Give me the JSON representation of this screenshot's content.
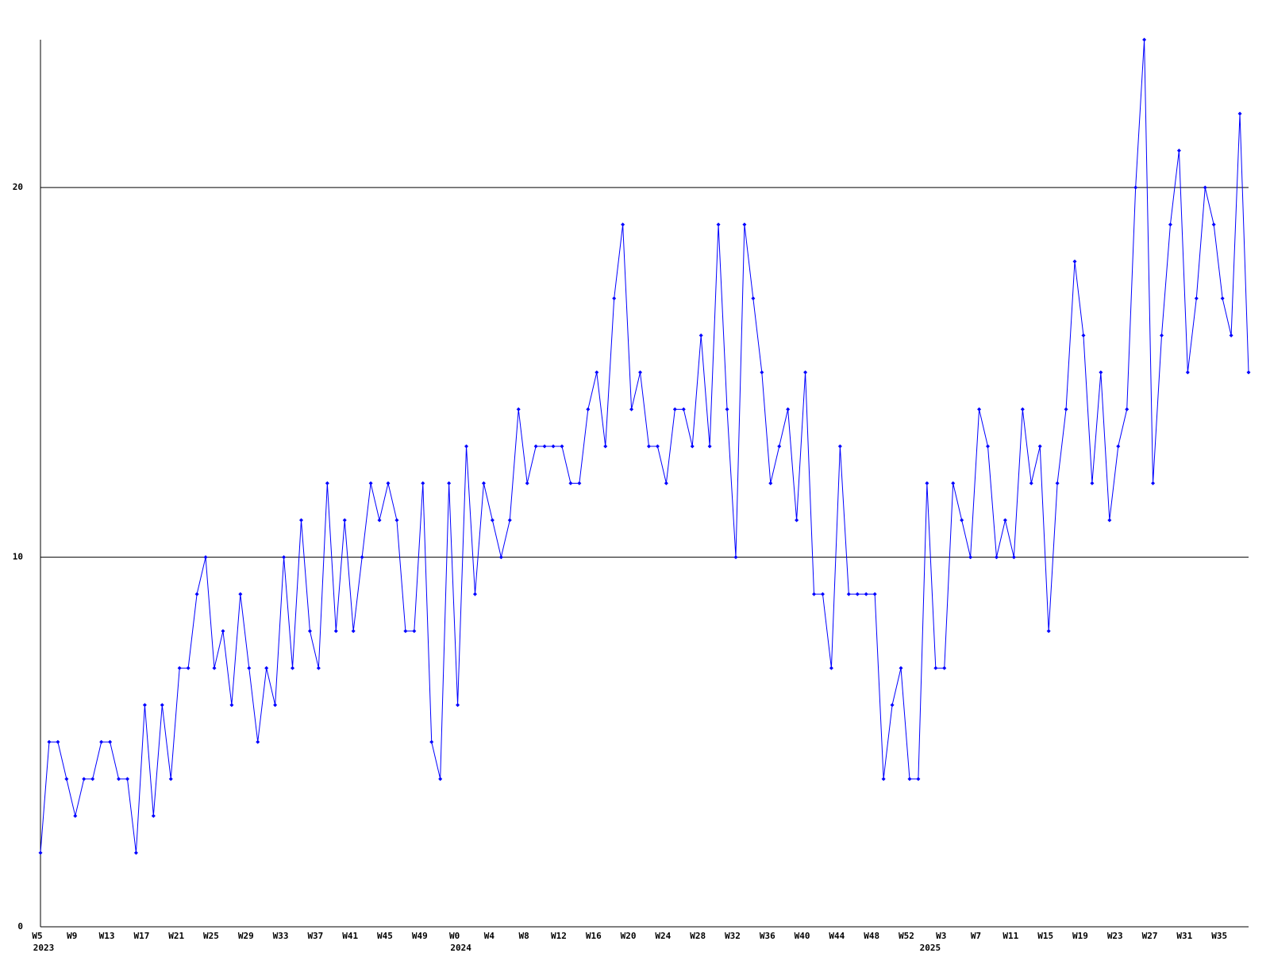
{
  "chart_data": {
    "type": "line",
    "categories": [
      "W5",
      null,
      null,
      null,
      "W9",
      null,
      null,
      null,
      "W13",
      null,
      null,
      null,
      "W17",
      null,
      null,
      null,
      "W21",
      null,
      null,
      null,
      "W25",
      null,
      null,
      null,
      "W29",
      null,
      null,
      null,
      "W33",
      null,
      null,
      null,
      "W37",
      null,
      null,
      null,
      "W41",
      null,
      null,
      null,
      "W45",
      null,
      null,
      null,
      "W49",
      null,
      null,
      null,
      "W0",
      null,
      null,
      null,
      "W4",
      null,
      null,
      null,
      "W8",
      null,
      null,
      null,
      "W12",
      null,
      null,
      null,
      "W16",
      null,
      null,
      null,
      "W20",
      null,
      null,
      null,
      "W24",
      null,
      null,
      null,
      "W28",
      null,
      null,
      null,
      "W32",
      null,
      null,
      null,
      "W36",
      null,
      null,
      null,
      "W40",
      null,
      null,
      null,
      "W44",
      null,
      null,
      null,
      "W48",
      null,
      null,
      null,
      "W52",
      null,
      null,
      null,
      "W3",
      null,
      null,
      null,
      "W7",
      null,
      null,
      null,
      "W11",
      null,
      null,
      null,
      "W15",
      null,
      null,
      null,
      "W19",
      null,
      null,
      null,
      "W23",
      null,
      null,
      null,
      "W27",
      null,
      null,
      null,
      "W31",
      null,
      null,
      null,
      "W35",
      null,
      null,
      null
    ],
    "year_labels": [
      "2023",
      null,
      null,
      null,
      null,
      null,
      null,
      null,
      null,
      null,
      null,
      null,
      null,
      null,
      null,
      null,
      null,
      null,
      null,
      null,
      null,
      null,
      null,
      null,
      null,
      null,
      null,
      null,
      null,
      null,
      null,
      null,
      null,
      null,
      null,
      null,
      null,
      null,
      null,
      null,
      null,
      null,
      null,
      null,
      null,
      null,
      null,
      null,
      "2024",
      null,
      null,
      null,
      null,
      null,
      null,
      null,
      null,
      null,
      null,
      null,
      null,
      null,
      null,
      null,
      null,
      null,
      null,
      null,
      null,
      null,
      null,
      null,
      null,
      null,
      null,
      null,
      null,
      null,
      null,
      null,
      null,
      null,
      null,
      null,
      null,
      null,
      null,
      null,
      null,
      null,
      null,
      null,
      null,
      null,
      null,
      null,
      null,
      null,
      null,
      null,
      null,
      null,
      "2025",
      null,
      null,
      null,
      null,
      null,
      null,
      null,
      null,
      null,
      null,
      null,
      null,
      null,
      null,
      null,
      null,
      null,
      null,
      null,
      null,
      null,
      null,
      null,
      null,
      null,
      null,
      null,
      null,
      null,
      null,
      null,
      null,
      null,
      null,
      null,
      null,
      null,
      null,
      null
    ],
    "series": [
      {
        "color": "#0000ff",
        "values": [
          2,
          5,
          5,
          4,
          3,
          4,
          4,
          5,
          5,
          4,
          4,
          2,
          6,
          3,
          6,
          4,
          7,
          7,
          9,
          10,
          7,
          8,
          6,
          9,
          7,
          5,
          7,
          6,
          10,
          7,
          11,
          8,
          7,
          12,
          8,
          11,
          8,
          10,
          12,
          11,
          12,
          11,
          8,
          8,
          12,
          5,
          4,
          12,
          6,
          13,
          9,
          12,
          11,
          10,
          11,
          14,
          12,
          13,
          13,
          13,
          13,
          12,
          12,
          14,
          15,
          13,
          17,
          19,
          14,
          15,
          13,
          13,
          12,
          14,
          14,
          13,
          16,
          13,
          19,
          14,
          10,
          19,
          17,
          15,
          12,
          13,
          14,
          11,
          15,
          9,
          9,
          7,
          13,
          9,
          9,
          9,
          9,
          4,
          6,
          7,
          4,
          4,
          12,
          7,
          7,
          12,
          11,
          10,
          14,
          13,
          10,
          11,
          10,
          14,
          12,
          13,
          8,
          12,
          14,
          18,
          16,
          12,
          15,
          11,
          13,
          14,
          20,
          24,
          12,
          16,
          19,
          21,
          15,
          17,
          20,
          19,
          17,
          16,
          22,
          15
        ]
      }
    ],
    "ylim": [
      0,
      24
    ],
    "yticks": [
      0,
      10,
      20
    ],
    "grid": true
  }
}
